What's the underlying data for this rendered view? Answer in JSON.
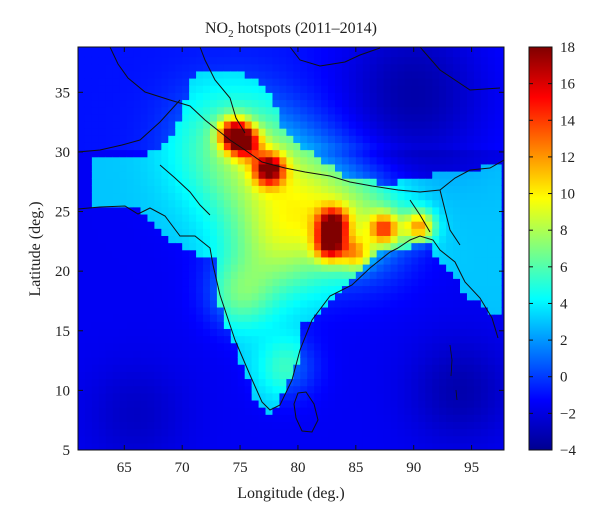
{
  "chart_data": {
    "type": "heatmap",
    "title_main": "NO",
    "title_sub": "2",
    "title_rest": " hotspots (2011–2014)",
    "xlabel": "Longitude (deg.)",
    "ylabel": "Latitude (deg.)",
    "xlim": [
      61.0,
      97.8
    ],
    "ylim": [
      5.0,
      38.8
    ],
    "xticks": [
      65,
      70,
      75,
      80,
      85,
      90,
      95
    ],
    "yticks": [
      5,
      10,
      15,
      20,
      25,
      30,
      35
    ],
    "colorbar": {
      "range": [
        -4,
        18
      ],
      "ticks": [
        -4,
        -2,
        0,
        2,
        4,
        6,
        8,
        10,
        12,
        14,
        16,
        18
      ],
      "colormap": "jet"
    },
    "background_value": -1.5,
    "hotspots": [
      {
        "lon": 74.5,
        "lat": 31.5,
        "value": 18
      },
      {
        "lon": 75.5,
        "lat": 30.8,
        "value": 15
      },
      {
        "lon": 77.5,
        "lat": 28.6,
        "value": 17.5
      },
      {
        "lon": 83.0,
        "lat": 24.0,
        "value": 17
      },
      {
        "lon": 82.8,
        "lat": 22.2,
        "value": 16.5
      },
      {
        "lon": 87.5,
        "lat": 23.6,
        "value": 14
      },
      {
        "lon": 90.5,
        "lat": 23.8,
        "value": 14
      },
      {
        "lon": 85.0,
        "lat": 21.5,
        "value": 11
      }
    ]
  }
}
